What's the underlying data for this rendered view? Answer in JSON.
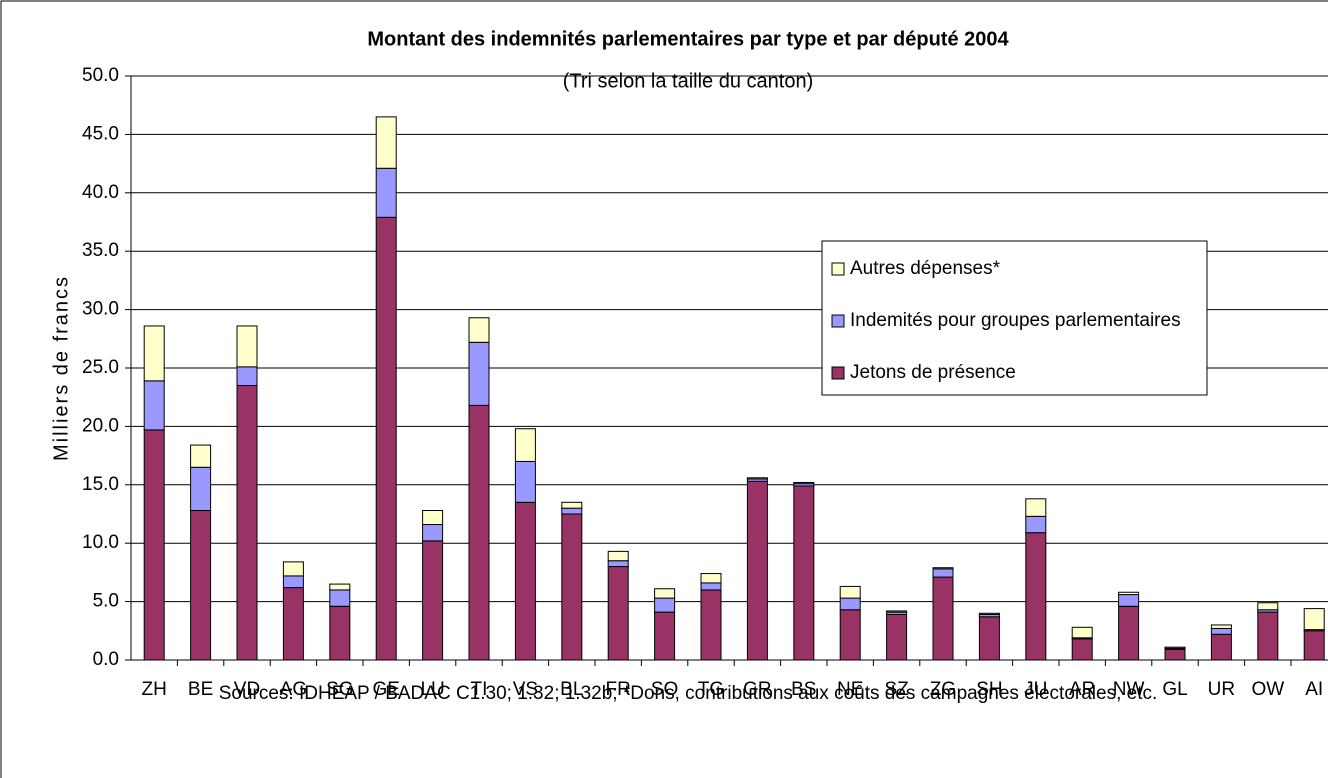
{
  "chart_data": {
    "type": "stacked_bar",
    "title": "Montant des indemnités parlementaires par type et par député  2004",
    "subtitle": "(Tri selon la taille du canton)",
    "y_label": "Milliers de francs",
    "source": "Sources: IDHEAP / BADAC C1.30; 1.32; 1.32b; *Dons, contributions aux coûts des campagnes électorales, etc.",
    "categories": [
      "ZH",
      "BE",
      "VD",
      "AG",
      "SG",
      "GE",
      "LU",
      "TI",
      "VS",
      "BL",
      "FR",
      "SO",
      "TG",
      "GR",
      "BS",
      "NE",
      "SZ",
      "ZG",
      "SH",
      "JU",
      "AR",
      "NW",
      "GL",
      "UR",
      "OW",
      "AI"
    ],
    "series": [
      {
        "name": "Jetons de présence",
        "color": "#993366",
        "values": [
          19.7,
          12.8,
          23.5,
          6.2,
          4.6,
          37.9,
          10.2,
          21.8,
          13.5,
          12.5,
          8.0,
          4.1,
          6.0,
          15.3,
          14.9,
          4.3,
          3.9,
          7.1,
          3.7,
          10.9,
          1.8,
          4.6,
          0.9,
          2.2,
          4.1,
          2.5
        ]
      },
      {
        "name": "Indemités pour groupes parlementaires",
        "color": "#9999ff",
        "values": [
          4.2,
          3.7,
          1.6,
          1.0,
          1.4,
          4.2,
          1.4,
          5.4,
          3.5,
          0.5,
          0.5,
          1.2,
          0.6,
          0.2,
          0.2,
          1.0,
          0.2,
          0.7,
          0.2,
          1.4,
          0.1,
          1.0,
          0.1,
          0.5,
          0.2,
          0.1
        ]
      },
      {
        "name": "Autres dépenses*",
        "color": "#ffffcc",
        "values": [
          4.7,
          1.9,
          3.5,
          1.2,
          0.5,
          4.4,
          1.2,
          2.1,
          2.8,
          0.5,
          0.8,
          0.8,
          0.8,
          0.1,
          0.1,
          1.0,
          0.1,
          0.1,
          0.1,
          1.5,
          0.9,
          0.2,
          0.1,
          0.3,
          0.6,
          1.8
        ]
      }
    ],
    "ylim": [
      0,
      50
    ],
    "yticks": [
      {
        "value": 0,
        "label": "0.0"
      },
      {
        "value": 5,
        "label": "5.0"
      },
      {
        "value": 10,
        "label": "10.0"
      },
      {
        "value": 15,
        "label": "15.0"
      },
      {
        "value": 20,
        "label": "20.0"
      },
      {
        "value": 25,
        "label": "25.0"
      },
      {
        "value": 30,
        "label": "30.0"
      },
      {
        "value": 35,
        "label": "35.0"
      },
      {
        "value": 40,
        "label": "40.0"
      },
      {
        "value": 45,
        "label": "45.0"
      },
      {
        "value": 50,
        "label": "50.0"
      }
    ],
    "grid": true
  }
}
